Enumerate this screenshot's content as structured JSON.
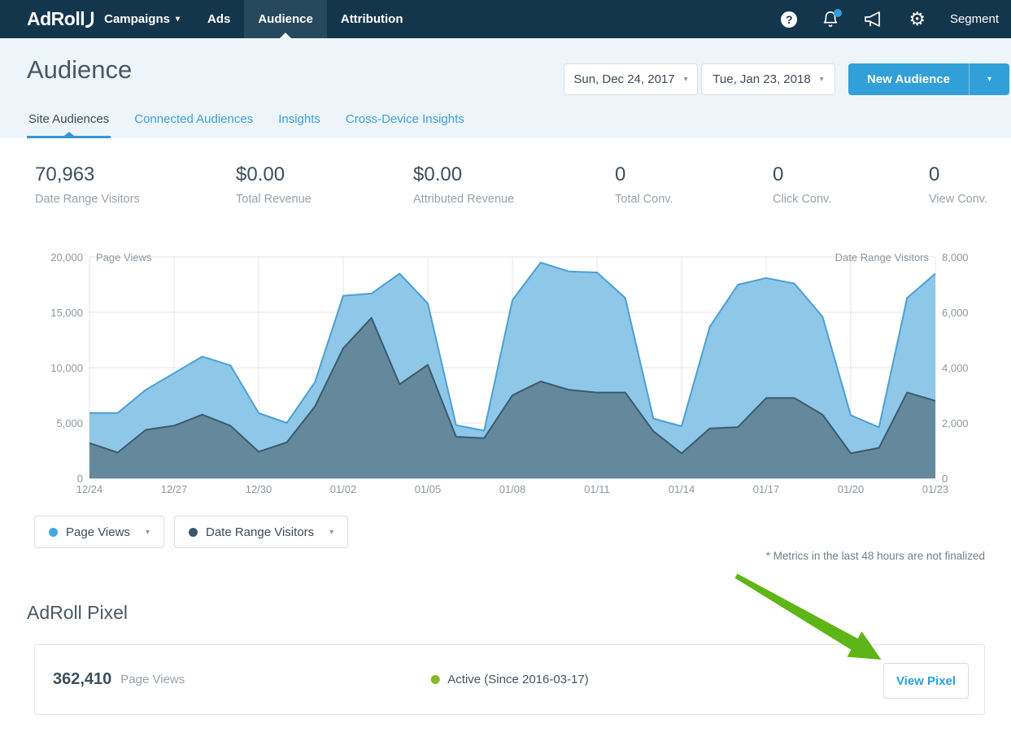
{
  "navbar": {
    "logo": "AdRoll",
    "items": [
      {
        "label": "Campaigns",
        "caret": true,
        "active": false
      },
      {
        "label": "Ads",
        "caret": false,
        "active": false
      },
      {
        "label": "Audience",
        "caret": false,
        "active": true
      },
      {
        "label": "Attribution",
        "caret": false,
        "active": false
      }
    ],
    "help_glyph": "?",
    "segment_label": "Segment",
    "notification_badge_color": "#2ea0dc"
  },
  "header": {
    "title": "Audience",
    "date_start": "Sun, Dec 24, 2017",
    "date_end": "Tue, Jan 23, 2018",
    "new_audience_label": "New Audience"
  },
  "tabs": [
    {
      "label": "Site Audiences",
      "active": true
    },
    {
      "label": "Connected Audiences",
      "active": false
    },
    {
      "label": "Insights",
      "active": false
    },
    {
      "label": "Cross-Device Insights",
      "active": false
    }
  ],
  "stats": [
    {
      "value": "70,963",
      "label": "Date Range Visitors"
    },
    {
      "value": "$0.00",
      "label": "Total Revenue"
    },
    {
      "value": "$0.00",
      "label": "Attributed Revenue"
    },
    {
      "value": "0",
      "label": "Total Conv."
    },
    {
      "value": "0",
      "label": "Click Conv."
    },
    {
      "value": "0",
      "label": "View Conv."
    }
  ],
  "chart_data": {
    "type": "area",
    "x": [
      "12/24",
      "12/25",
      "12/26",
      "12/27",
      "12/28",
      "12/29",
      "12/30",
      "12/31",
      "01/01",
      "01/02",
      "01/03",
      "01/04",
      "01/05",
      "01/06",
      "01/07",
      "01/08",
      "01/09",
      "01/10",
      "01/11",
      "01/12",
      "01/13",
      "01/14",
      "01/15",
      "01/16",
      "01/17",
      "01/18",
      "01/19",
      "01/20",
      "01/21",
      "01/22",
      "01/23"
    ],
    "x_tick_labels": [
      "12/24",
      "12/27",
      "12/30",
      "01/02",
      "01/05",
      "01/08",
      "01/11",
      "01/14",
      "01/17",
      "01/20",
      "01/23"
    ],
    "grid": true,
    "legend_position": "bottom-left-dropdowns",
    "left_axis": {
      "title": "Page Views",
      "ticks": [
        "0",
        "5,000",
        "10,000",
        "15,000",
        "20,000"
      ],
      "range": [
        0,
        20000
      ]
    },
    "right_axis": {
      "title": "Date Range Visitors",
      "ticks": [
        "0",
        "2,000",
        "4,000",
        "6,000",
        "8,000"
      ],
      "range": [
        0,
        8000
      ]
    },
    "series": [
      {
        "name": "Page Views",
        "axis": "left",
        "color": "#8fc7e8",
        "line_color": "#4aa0d6",
        "values": [
          5900,
          5900,
          8000,
          9500,
          11000,
          10200,
          5900,
          5000,
          8700,
          16500,
          16700,
          18500,
          15800,
          4800,
          4300,
          16100,
          19500,
          18700,
          18600,
          16300,
          5400,
          4700,
          13700,
          17500,
          18100,
          17600,
          14600,
          5700,
          4600,
          16300,
          18500
        ]
      },
      {
        "name": "Date Range Visitors",
        "axis": "right",
        "color": "#64899c",
        "line_color": "#3b5a6e",
        "values": [
          1270,
          930,
          1750,
          1900,
          2300,
          1900,
          960,
          1300,
          2600,
          4700,
          5800,
          3400,
          4100,
          1500,
          1450,
          3000,
          3500,
          3200,
          3100,
          3100,
          1700,
          900,
          1800,
          1850,
          2900,
          2900,
          2300,
          900,
          1100,
          3100,
          2800
        ]
      }
    ]
  },
  "legend": [
    {
      "label": "Page Views",
      "dot_color": "#41a7e0"
    },
    {
      "label": "Date Range Visitors",
      "dot_color": "#3d5568"
    }
  ],
  "footnote": "* Metrics in the last 48 hours are not finalized",
  "pixel_section": {
    "heading": "AdRoll Pixel",
    "page_views_value": "362,410",
    "page_views_label": "Page Views",
    "status_text": "Active (Since 2016-03-17)",
    "status_color": "#86b82e",
    "view_pixel_label": "View Pixel"
  },
  "annotation": {
    "arrow_color": "#5db516"
  }
}
